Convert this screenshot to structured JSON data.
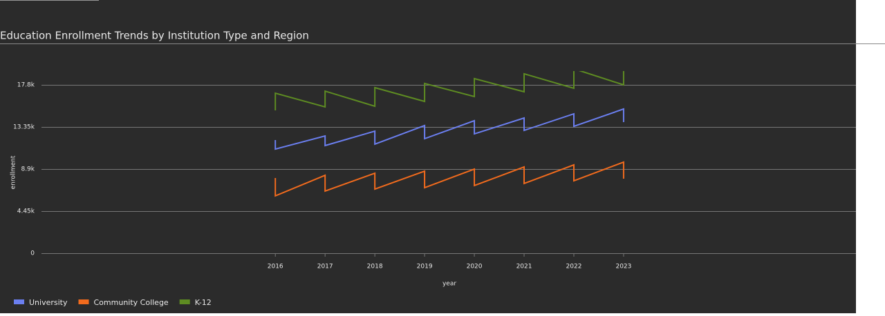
{
  "chart_data": {
    "type": "line",
    "title": "Education Enrollment Trends by Institution Type and Region",
    "x_label": "year",
    "y_label": "enrollment",
    "x": [
      2016,
      2016,
      2017,
      2017,
      2018,
      2018,
      2019,
      2019,
      2020,
      2020,
      2021,
      2021,
      2022,
      2022,
      2023,
      2023
    ],
    "series": [
      {
        "name": "University",
        "color": "#6b7ff0",
        "values": [
          11960,
          11010,
          12400,
          11380,
          12910,
          11530,
          13500,
          12110,
          14010,
          12620,
          14300,
          12990,
          14740,
          13420,
          15250,
          13860
        ]
      },
      {
        "name": "Community College",
        "color": "#f26b1d",
        "values": [
          7950,
          6060,
          8240,
          6570,
          8460,
          6780,
          8680,
          6930,
          8900,
          7150,
          9120,
          7370,
          9340,
          7660,
          9630,
          7880
        ]
      },
      {
        "name": "K-12",
        "color": "#5e8c22",
        "values": [
          15100,
          16920,
          15470,
          17140,
          15540,
          17510,
          16050,
          17950,
          16560,
          18460,
          17070,
          18970,
          17440,
          19500,
          17800,
          19400
        ]
      }
    ],
    "xlim": [
      2011.3,
      2027.67
    ],
    "xticks": [
      2016,
      2017,
      2018,
      2019,
      2020,
      2021,
      2022,
      2023
    ],
    "ylim": [
      0,
      19260
    ],
    "yticks": [
      0,
      {
        "value": 4450,
        "label": "4.45k"
      },
      {
        "value": 8900,
        "label": "8.9k"
      },
      {
        "value": 13350,
        "label": "13.35k"
      },
      {
        "value": 17800,
        "label": "17.8k"
      }
    ],
    "grid": true,
    "legend": "bottom-left"
  }
}
